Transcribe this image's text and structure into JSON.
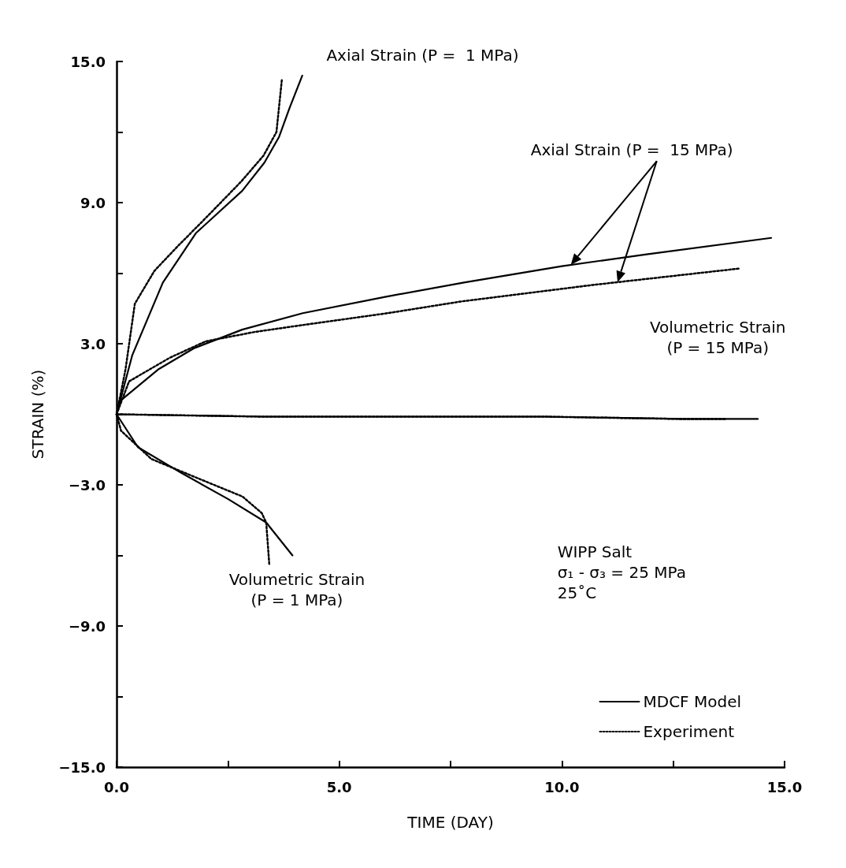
{
  "chart_data": {
    "type": "line",
    "xlabel": "TIME (DAY)",
    "ylabel": "STRAIN (%)",
    "xlim": [
      0,
      15
    ],
    "xticks": [
      {
        "value": 0,
        "label": "0.0"
      },
      {
        "value": 2.5,
        "label": null
      },
      {
        "value": 5,
        "label": "5.0"
      },
      {
        "value": 7.5,
        "label": null
      },
      {
        "value": 10,
        "label": "10.0"
      },
      {
        "value": 12.5,
        "label": null
      },
      {
        "value": 15,
        "label": "15.0"
      }
    ],
    "ylim": [
      -15,
      15
    ],
    "yticks": [
      {
        "value": -15,
        "label": "−15.0"
      },
      {
        "value": -12,
        "label": null
      },
      {
        "value": -9,
        "label": "−9.0"
      },
      {
        "value": -6,
        "label": null
      },
      {
        "value": -3,
        "label": "−3.0"
      },
      {
        "value": 0,
        "label": null
      },
      {
        "value": 3,
        "label": "3.0"
      },
      {
        "value": 6,
        "label": null
      },
      {
        "value": 9,
        "label": "9.0"
      },
      {
        "value": 12,
        "label": null
      },
      {
        "value": 15,
        "label": "15.0"
      }
    ],
    "grid": false,
    "legend": "bottom right",
    "marker": "none",
    "series": [
      {
        "name": "MDCF Model",
        "color": "#000000",
        "line_style": "solid",
        "x": [
          0,
          0.35,
          1.04,
          1.78,
          2.82,
          3.32,
          3.65,
          3.88,
          4.17
        ],
        "values": [
          0,
          2.5,
          5.6,
          7.7,
          9.5,
          10.7,
          11.8,
          13.0,
          14.4
        ]
      },
      {
        "name": "Experiment",
        "color": "#000000",
        "line_style": "dotted",
        "x": [
          0,
          0.2,
          0.41,
          0.85,
          1.35,
          2.03,
          2.8,
          3.3,
          3.59,
          3.71
        ],
        "values": [
          0,
          1.9,
          4.7,
          6.1,
          7.1,
          8.4,
          9.9,
          11.0,
          12.0,
          14.2
        ]
      },
      {
        "color": "#000000",
        "line_style": "solid",
        "x": [
          0,
          0.1,
          0.93,
          1.73,
          2.82,
          4.18,
          6.05,
          7.8,
          10.0,
          11.9,
          14.7
        ],
        "values": [
          0,
          0.6,
          1.9,
          2.8,
          3.6,
          4.3,
          5.0,
          5.6,
          6.3,
          6.8,
          7.5
        ]
      },
      {
        "color": "#000000",
        "line_style": "dotted",
        "x": [
          0,
          0.28,
          1.19,
          2.0,
          3.1,
          4.2,
          6.09,
          7.75,
          10.7,
          14.0
        ],
        "values": [
          0,
          1.4,
          2.4,
          3.1,
          3.5,
          3.8,
          4.3,
          4.8,
          5.5,
          6.2
        ]
      },
      {
        "color": "#000000",
        "line_style": "solid",
        "x": [
          0,
          3.3,
          6.2,
          9.6,
          12.7,
          14.4
        ],
        "values": [
          0,
          -0.1,
          -0.1,
          -0.1,
          -0.2,
          -0.2
        ]
      },
      {
        "color": "#000000",
        "line_style": "dotted",
        "x": [
          0,
          3.3,
          6.2,
          9.6,
          12.7,
          13.7
        ],
        "values": [
          0,
          -0.1,
          -0.1,
          -0.1,
          -0.2,
          -0.2
        ]
      },
      {
        "color": "#000000",
        "line_style": "solid",
        "x": [
          0,
          0.48,
          1.46,
          2.5,
          3.36,
          3.95
        ],
        "values": [
          0,
          -1.4,
          -2.5,
          -3.6,
          -4.6,
          -6.0
        ]
      },
      {
        "color": "#000000",
        "line_style": "dotted",
        "x": [
          0,
          0.1,
          0.78,
          1.8,
          2.83,
          3.26,
          3.36,
          3.43
        ],
        "values": [
          0,
          -0.7,
          -1.9,
          -2.7,
          -3.5,
          -4.2,
          -4.6,
          -6.4
        ]
      }
    ],
    "annotations": [
      "Axial Strain (P =  1 MPa)",
      "Axial Strain (P =  15 MPa)",
      "Volumetric Strain\n(P = 15 MPa)",
      "Volumetric Strain\n(P = 1 MPa)",
      "WIPP Salt",
      "σ₁ - σ₃ = 25 MPa",
      "25˚C"
    ]
  }
}
